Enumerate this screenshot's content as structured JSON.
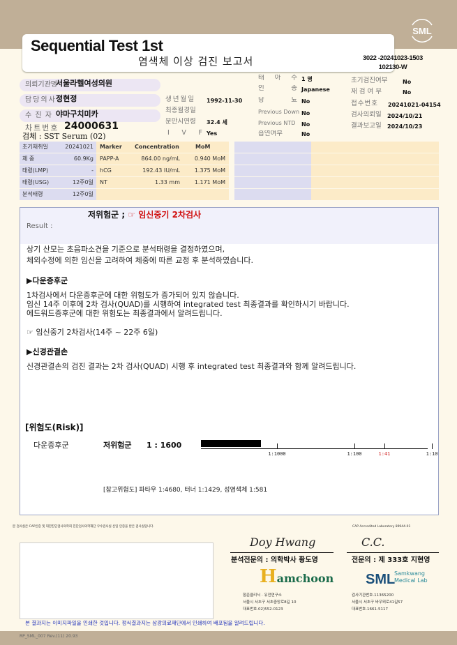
{
  "header": {
    "title": "Sequential Test 1st",
    "subtitle": "염색체 이상 검진 보고서",
    "doc_no_line1": "3022 -20241023-1503",
    "doc_no_line2": "102130-W",
    "logo": "SML"
  },
  "patient": {
    "institution_label": "의뢰기관명",
    "institution": "서울라헬여성의원",
    "doctor_label": "담당의사",
    "doctor": "정현정",
    "patient_label": "수 진 자",
    "patient": "야마구치미카",
    "chart_label": "차트번호",
    "chart": "24000631",
    "specimen": "검체 : SST Serum (02)",
    "dob_label": "생년월일",
    "dob": "1992-11-30",
    "lmp_label": "최종월경일",
    "lmp": "",
    "age_label": "분만시연령",
    "age": "32.4 세",
    "ivf_label": "I V F",
    "ivf": "Yes",
    "fetus_label": "태 아 수",
    "fetus": "1 명",
    "race_label": "인 종",
    "race": "Japanese",
    "diabetes_label": "당 뇨",
    "diabetes": "No",
    "prev_down_label": "Previous Down",
    "prev_down": "No",
    "prev_ntd_label": "Previous NTD",
    "prev_ntd": "No",
    "smoking_label": "흡연여부",
    "smoking": "No",
    "initial_label": "초기검진여부",
    "initial": "No",
    "retest_label": "재검여부",
    "retest": "No",
    "receipt_label": "접수번호",
    "receipt": "20241021-04154",
    "request_date_label": "검사의뢰일",
    "request_date": "2024/10/21",
    "report_date_label": "결과보고일",
    "report_date": "2024/10/23"
  },
  "info_rows": [
    {
      "label": "초기채취일",
      "value": "20241021"
    },
    {
      "label": "체 중",
      "value": "60.9Kg"
    },
    {
      "label": "태령(LMP)",
      "value": "-"
    },
    {
      "label": "태령(USG)",
      "value": "12주0일"
    },
    {
      "label": "분석태령",
      "value": "12주0일"
    }
  ],
  "markers": {
    "headers": [
      "Marker",
      "Concentration",
      "MoM"
    ],
    "rows": [
      [
        "PAPP-A",
        "864.00 ng/mL",
        "0.940 MoM"
      ],
      [
        "hCG",
        "192.43 IU/mL",
        "1.375 MoM"
      ],
      [
        "NT",
        "1.33 mm",
        "1.171 MoM"
      ]
    ]
  },
  "result": {
    "label": "Result :",
    "summary": "저위험군 ;",
    "recommend": "☞ 임신중기 2차검사",
    "lines": [
      "상기 산모는 초음파소견을 기준으로 분석태령을 결정하였으며,",
      "체외수정에 의한 임신을 고려하여 체중에 따른 교정 후 분석하였습니다."
    ],
    "down_head": "▶다운증후군",
    "down_lines": [
      "1차검사에서 다운증후군에 대한 위험도가 증가되어 있지 않습니다.",
      "임신 14주 이후에 2차 검사(QUAD)를 시행하여 integrated test 최종결과를 확인하시기 바랍니다.",
      "에드워드증후군에 대한 위험도는 최종결과에서 알려드립니다."
    ],
    "second": "☞ 임신중기 2차검사(14주 ~ 22주 6일)",
    "ntd_head": "▶신경관결손",
    "ntd_line": "신경관결손의 검진 결과는 2차 검사(QUAD) 시행 후 integrated test 최종결과와 함께 알려드립니다."
  },
  "risk": {
    "title": "[위험도(Risk)]",
    "name": "다운증후군",
    "level": "저위험군",
    "value": "1 : 1600",
    "risk_denominator": 1600,
    "ticks": [
      {
        "label": "1:1000",
        "d": 1000
      },
      {
        "label": "1:100",
        "d": 100
      },
      {
        "label": "1:41",
        "d": 41,
        "color": "#d02020"
      },
      {
        "label": "1:10",
        "d": 10
      }
    ],
    "reference": "[참고위험도] 파타우 1:4680, 터너 1:1429, 성염색체 1:581"
  },
  "footer": {
    "notice_small": "본 검사실은 CAP인증 및 대한진단검사의학회 진단검사의학재단 우수검사실 신임 인증을 받은 검사실입니다.",
    "cap": "CAP Accredited Laboratory 89944-01",
    "sig1_name": "분석전문의 : 의학박사 황도영",
    "sig2_name": "전문의 : 제 333호 지현영",
    "sig1_script": "Doy Hwang",
    "sig2_script": "C.C.",
    "hamchoon_logo": "Hamchoon",
    "hamchoon_lines": [
      "함춘클리닉 · 유전연구소",
      "서울시 서초구 서초중앙로8길 10",
      "대표번호.02)552-0123"
    ],
    "sml_logo": "SML Samkwang Medical Lab",
    "sml_lines": [
      "검사기관번호.11365200",
      "서울시 서초구 바우뫼로41길57",
      "대표번호.1661-5117"
    ],
    "notice": "본 결과지는 이미지파일을 인쇄한 것입니다. 정식결과지는 삼광의료재단에서 인쇄하여 배포됨을 알려드립니다.",
    "form_code": "RP_SML_007 Rev.(11) 20.93"
  }
}
